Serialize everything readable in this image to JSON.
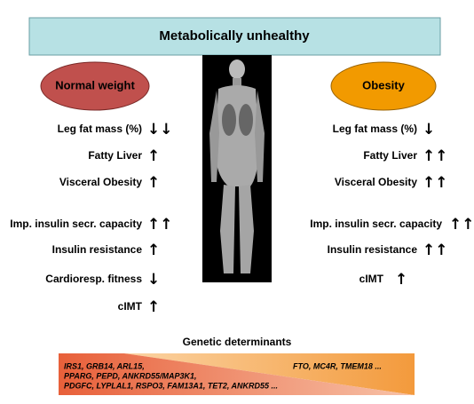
{
  "title": "Metabolically unhealthy",
  "left": {
    "label": "Normal weight",
    "items": [
      {
        "text": "Leg fat mass (%)",
        "arrows": "↓↓"
      },
      {
        "text": "Fatty Liver",
        "arrows": "↑"
      },
      {
        "text": "Visceral Obesity",
        "arrows": "↑"
      },
      {
        "text": "Imp. insulin secr. capacity",
        "arrows": "↑↑"
      },
      {
        "text": "Insulin resistance",
        "arrows": "↑"
      },
      {
        "text": "Cardioresp. fitness",
        "arrows": "↓"
      },
      {
        "text": "cIMT",
        "arrows": "↑"
      }
    ]
  },
  "right": {
    "label": "Obesity",
    "items": [
      {
        "text": "Leg fat mass (%)",
        "arrows": "↓"
      },
      {
        "text": "Fatty Liver",
        "arrows": "↑↑"
      },
      {
        "text": "Visceral Obesity",
        "arrows": "↑↑"
      },
      {
        "text": "Imp. insulin secr. capacity",
        "arrows": "↑↑"
      },
      {
        "text": "Insulin resistance",
        "arrows": "↑↑"
      },
      {
        "text": "cIMT",
        "arrows": "↑"
      }
    ]
  },
  "genetics": {
    "title": "Genetic determinants",
    "left_genes": [
      "IRS1, GRB14, ARL15,",
      "PPARG, PEPD, ANKRD55/MAP3K1,",
      "PDGFC, LYPLAL1, RSPO3, FAM13A1, TET2, ANKRD55 ..."
    ],
    "right_genes": "FTO, MC4R, TMEM18 ..."
  }
}
